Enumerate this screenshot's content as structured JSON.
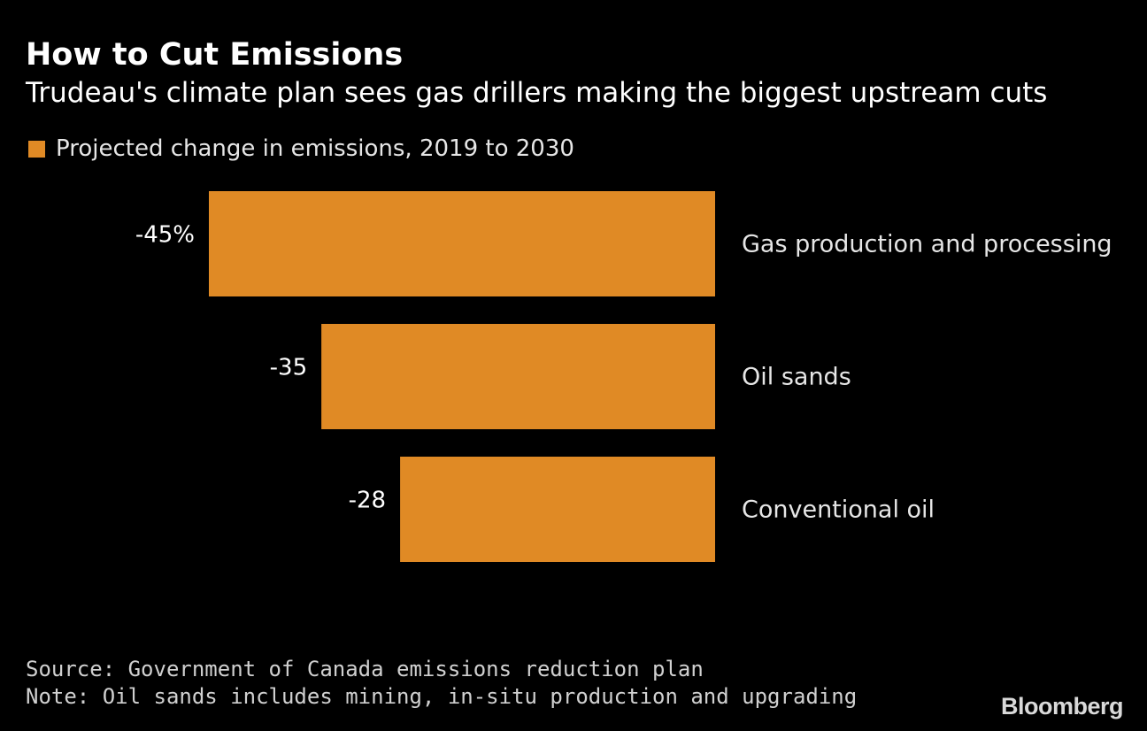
{
  "colors": {
    "background": "#000000",
    "bar": "#e08a25",
    "text": "#ffffff"
  },
  "chart_data": {
    "type": "bar",
    "orientation": "horizontal",
    "title": "How to Cut Emissions",
    "subtitle": "Trudeau's climate plan sees gas drillers making the biggest upstream cuts",
    "legend": [
      "Projected change in emissions, 2019 to 2030"
    ],
    "categories": [
      "Gas production and processing",
      "Oil sands",
      "Conventional oil"
    ],
    "values": [
      -45,
      -35,
      -28
    ],
    "value_labels": [
      "-45%",
      "-35",
      "-28"
    ],
    "unit": "%",
    "xlim": [
      -45,
      0
    ],
    "xlabel": "",
    "ylabel": "",
    "grid": false
  },
  "footer": {
    "source": "Source: Government of Canada emissions reduction plan",
    "note": "Note: Oil sands includes mining, in-situ production and upgrading",
    "brand": "Bloomberg"
  }
}
